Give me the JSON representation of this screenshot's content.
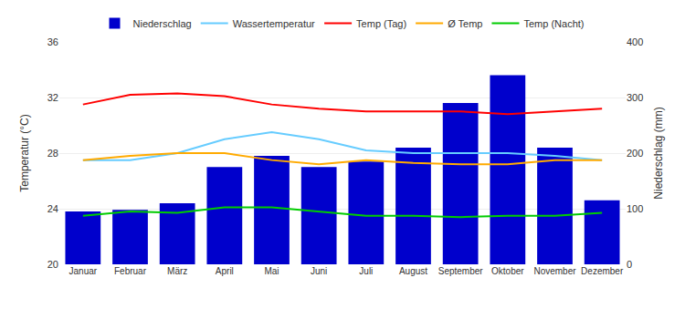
{
  "chart_data": {
    "type": "bar",
    "categories": [
      "Januar",
      "Februar",
      "März",
      "April",
      "Mai",
      "Juni",
      "Juli",
      "August",
      "September",
      "Oktober",
      "November",
      "Dezember"
    ],
    "series": [
      {
        "name": "Niederschlag",
        "type": "bar",
        "axis": "y2",
        "color": "#0000cc",
        "values": [
          95,
          98,
          110,
          175,
          195,
          175,
          185,
          210,
          290,
          340,
          210,
          115
        ]
      },
      {
        "name": "Wassertemperatur",
        "type": "line",
        "color": "#66ccff",
        "values": [
          27.5,
          27.5,
          28.0,
          29.0,
          29.5,
          29.0,
          28.2,
          28.0,
          28.0,
          28.0,
          27.8,
          27.5
        ]
      },
      {
        "name": "Temp (Tag)",
        "type": "line",
        "color": "#ff0000",
        "values": [
          31.5,
          32.2,
          32.3,
          32.1,
          31.5,
          31.2,
          31.0,
          31.0,
          31.0,
          30.8,
          31.0,
          31.2
        ]
      },
      {
        "name": "Ø Temp",
        "type": "line",
        "color": "#ffaa00",
        "values": [
          27.5,
          27.8,
          28.0,
          28.0,
          27.5,
          27.2,
          27.5,
          27.3,
          27.2,
          27.2,
          27.5,
          27.5
        ]
      },
      {
        "name": "Temp (Nacht)",
        "type": "line",
        "color": "#00cc00",
        "values": [
          23.5,
          23.8,
          23.7,
          24.1,
          24.1,
          23.8,
          23.5,
          23.5,
          23.4,
          23.5,
          23.5,
          23.7
        ]
      }
    ],
    "ylabel": "Temperatur (°C)",
    "y2label": "Niederschlag (mm)",
    "ylim": [
      20,
      36
    ],
    "yticks": [
      20,
      24,
      28,
      32,
      36
    ],
    "y2lim": [
      0,
      400
    ],
    "y2ticks": [
      0,
      100,
      200,
      300,
      400
    ],
    "grid": true,
    "legend": "top"
  }
}
